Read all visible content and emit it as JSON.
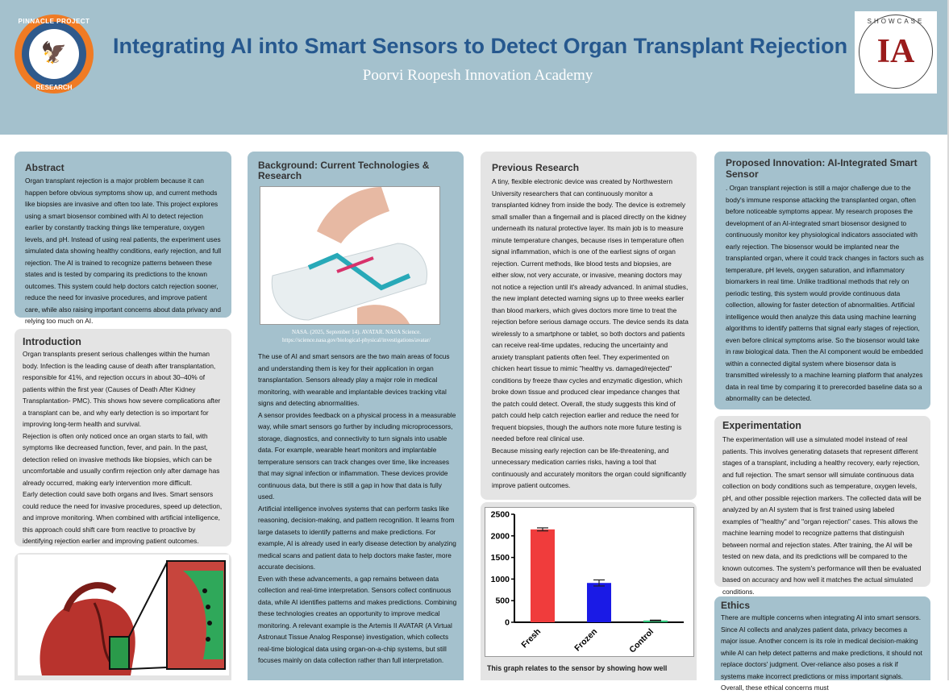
{
  "header": {
    "title": "Integrating AI into Smart Sensors to Detect Organ Transplant Rejection",
    "subtitle": "Poorvi Roopesh Innovation Academy",
    "left_logo": {
      "top_text": "PINNACLE PROJECT",
      "bottom_text": "RESEARCH",
      "icon": "phoenix-icon"
    },
    "right_logo": {
      "ring_text": "SHOWCASE",
      "letters": "IA"
    }
  },
  "abstract": {
    "title": "Abstract",
    "text": "Organ transplant rejection is a major problem because it can happen before obvious symptoms show up, and current methods like biopsies are invasive and often too late. This project explores using a smart biosensor combined with AI to detect rejection earlier by constantly tracking things like temperature, oxygen levels, and pH. Instead of using real patients, the experiment uses simulated data showing healthy conditions, early rejection, and full rejection. The AI is trained to recognize patterns between these states and is tested by comparing its predictions to the known outcomes. This system could help doctors catch rejection sooner, reduce the need for invasive procedures, and improve patient care, while also raising important concerns about data privacy and relying too much on AI."
  },
  "introduction": {
    "title": "Introduction",
    "paragraphs": [
      "Organ transplants present serious challenges within the human body. Infection is the leading cause of death after transplantation, responsible for 41%, and rejection occurs in about 30–40% of patients within the first year (Causes of Death After Kidney Transplantation- PMC). This shows how severe complications after a transplant can be, and why early detection is so important for improving long-term health and survival.",
      "Rejection is often only noticed once an organ starts to fail, with symptoms like decreased function, fever, and pain. In the past, detection relied on invasive methods like biopsies, which can be uncomfortable and usually confirm rejection only after damage has already occurred, making early intervention more difficult.",
      "Early detection could save both organs and lives. Smart sensors could reduce the need for invasive procedures, speed up detection, and improve monitoring. When combined with artificial intelligence, this approach could shift care from reactive to proactive by identifying rejection earlier and improving patient outcomes."
    ]
  },
  "background": {
    "title": "Background: Current Technologies & Research",
    "image_caption_1": "NASA. (2025, September 14). AVATAR. NASA Science.",
    "image_caption_2": "https://science.nasa.gov/biological-physical/investigations/avatar/",
    "paragraphs": [
      "The use of AI and smart sensors are the two main areas of focus and understanding them is key for their application in organ transplantation. Sensors already play a major role in medical monitoring, with wearable and implantable devices tracking vital signs and detecting abnormalities.",
      "A sensor provides feedback on a physical process in a measurable way, while smart sensors go further by including microprocessors, storage, diagnostics, and connectivity to turn signals into usable data. For example, wearable heart monitors and implantable temperature sensors can track changes over time, like increases that may signal infection or inflammation. These devices provide continuous data, but there is still a gap in how that data is fully used.",
      "Artificial intelligence involves systems that can perform tasks like reasoning, decision-making, and pattern recognition. It learns from large datasets to identify patterns and make predictions. For example, AI is already used in early disease detection by analyzing medical scans and patient data to help doctors make faster, more accurate decisions.",
      "Even with these advancements, a gap remains between data collection and real-time interpretation. Sensors collect continuous data, while AI identifies patterns and makes predictions. Combining these technologies creates an opportunity to improve medical monitoring. A relevant example is the Artemis II AVATAR (A Virtual Astronaut Tissue Analog Response) investigation, which collects real-time biological data using organ-on-a-chip systems, but still focuses mainly on data collection rather than full interpretation."
    ]
  },
  "previous": {
    "title": "Previous Research",
    "paragraphs": [
      "A tiny, flexible electronic device was created by Northwestern University researchers that can continuously monitor a transplanted kidney from inside the body. The device is extremely small smaller than a fingernail and is placed directly on the kidney underneath its natural protective layer. Its main job is to measure minute temperature changes, because rises in temperature often signal inflammation, which is one of the earliest signs of organ rejection. Current methods, like blood tests and biopsies, are either slow, not very accurate, or invasive, meaning doctors may not notice a rejection until it's already advanced. In animal studies, the new implant detected warning signs up to three weeks earlier than blood markers, which gives doctors more time to treat the rejection before serious damage occurs. The device sends its data wirelessly to a smartphone or tablet, so both doctors and patients can receive real-time updates, reducing the uncertainty and anxiety transplant patients often feel. They experimented on chicken heart tissue to mimic \"healthy vs. damaged/rejected\" conditions by freeze thaw cycles and enzymatic digestion, which broke down tissue and produced clear impedance changes that the patch could detect. Overall, the study suggests this kind of patch could help catch rejection earlier and reduce the need for frequent biopsies, though the authors note more future testing is needed before real clinical use.",
      " Because missing early rejection can be life-threatening, and unnecessary medication carries risks, having a tool that continuously and accurately monitors the organ could significantly improve patient outcomes."
    ],
    "graph_caption": "This graph relates to the sensor by showing how well"
  },
  "chart_data": {
    "type": "bar",
    "categories": [
      "Fresh",
      "Frozen",
      "Control"
    ],
    "values": [
      2150,
      910,
      40
    ],
    "errors": [
      35,
      70,
      10
    ],
    "colors": [
      "#f03c3c",
      "#1a1ae6",
      "#2fc77a"
    ],
    "ylim": [
      0,
      2500
    ],
    "yticks": [
      0,
      500,
      1000,
      1500,
      2000,
      2500
    ],
    "title": "",
    "xlabel": "",
    "ylabel": ""
  },
  "proposed": {
    "title": "Proposed Innovation: AI-Integrated Smart Sensor",
    "text": ". Organ transplant rejection is still a major challenge due to the body's immune response attacking the transplanted organ, often before noticeable symptoms appear. My research proposes the development of an AI-integrated smart biosensor designed to continuously monitor key physiological indicators associated with early rejection. The biosensor would be implanted near the transplanted organ, where it could track changes in factors such as temperature, pH levels, oxygen saturation, and inflammatory biomarkers in real time. Unlike traditional methods that rely on periodic testing, this system would provide continuous data collection, allowing for faster detection of abnormalities. Artificial intelligence would then analyze this data using machine learning algorithms to identify patterns that signal early stages of rejection, even before clinical symptoms arise. So the biosensor would take in raw biological data. Then the AI component would be embedded within a connected digital system where biosensor data is transmitted wirelessly to a machine learning platform that analyzes data in real time by comparing it to prerecorded baseline data so a abnormality can be detected."
  },
  "experimentation": {
    "title": "Experimentation",
    "text": "The experimentation will use a simulated model instead of real patients. This involves generating datasets that represent different stages of a transplant, including a healthy recovery, early rejection, and full rejection. The smart sensor will simulate continuous data collection on body conditions such as temperature, oxygen levels, pH, and other possible rejection markers. The collected data will be analyzed by an AI system that is first trained using labeled examples of \"healthy\" and \"organ rejection\" cases. This allows the machine learning model to recognize patterns that distinguish between normal and rejection states. After training, the AI will be tested on new data, and its predictions will be compared to the known outcomes. The system's performance will then be evaluated based on accuracy and how well it matches the actual simulated conditions."
  },
  "ethics": {
    "title": "Ethics",
    "text": "There are multiple concerns when integrating AI into smart sensors. Since AI collects and analyzes patient data, privacy becomes a major issue. Another concern is its role in medical decision-making while AI can help detect patterns and make predictions, it should not replace doctors' judgment. Over-reliance also poses a risk if systems make incorrect predictions or miss important signals. Overall, these ethical concerns must"
  }
}
